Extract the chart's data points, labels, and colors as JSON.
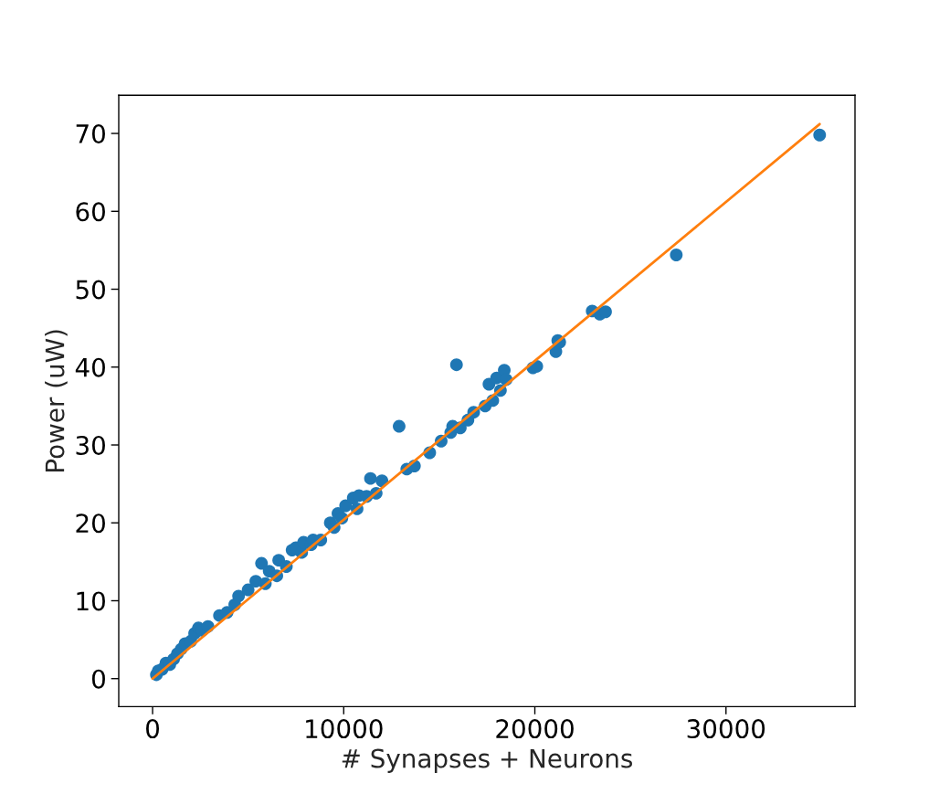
{
  "chart_data": {
    "type": "scatter",
    "xlabel": "# Synapses + Neurons",
    "ylabel": "Power (uW)",
    "xlim": [
      -1770,
      36750
    ],
    "ylim": [
      -3.6,
      74.9
    ],
    "xticks": [
      0,
      10000,
      20000,
      30000
    ],
    "yticks": [
      0,
      10,
      20,
      30,
      40,
      50,
      60,
      70
    ],
    "grid": false,
    "marker": "circle",
    "series": [
      {
        "color": "#1f77b4",
        "x": [
          200,
          300,
          500,
          700,
          900,
          1100,
          1300,
          1500,
          1700,
          2000,
          2200,
          2400,
          2600,
          2900,
          3500,
          3900,
          4300,
          4500,
          5000,
          5400,
          5700,
          5900,
          6100,
          6500,
          6600,
          7000,
          7300,
          7500,
          7800,
          7900,
          8300,
          8400,
          8800,
          9300,
          9500,
          9700,
          9900,
          10100,
          10500,
          10700,
          10800,
          11200,
          11400,
          11700,
          12000,
          12900,
          13300,
          13700,
          14500,
          15100,
          15600,
          15700,
          15900,
          16100,
          16500,
          16800,
          17400,
          17600,
          17800,
          18000,
          18200,
          18400,
          18500,
          19900,
          20100,
          21100,
          21200,
          21300,
          23000,
          23400,
          23700,
          27400,
          34900
        ],
        "values": [
          0.5,
          1.0,
          1.2,
          2.0,
          1.8,
          2.5,
          3.2,
          3.8,
          4.5,
          4.8,
          5.8,
          6.5,
          6.2,
          6.7,
          8.1,
          8.5,
          9.5,
          10.6,
          11.4,
          12.5,
          14.8,
          12.2,
          13.8,
          13.2,
          15.2,
          14.4,
          16.5,
          16.8,
          16.2,
          17.5,
          17.2,
          17.8,
          17.8,
          20.0,
          19.4,
          21.2,
          20.6,
          22.2,
          23.2,
          21.8,
          23.5,
          23.4,
          25.7,
          23.8,
          25.4,
          32.4,
          26.9,
          27.3,
          29.0,
          30.5,
          31.6,
          32.4,
          40.3,
          32.2,
          33.2,
          34.2,
          35.0,
          37.8,
          35.7,
          38.6,
          37.0,
          39.6,
          38.4,
          39.9,
          40.1,
          42.0,
          43.4,
          43.2,
          47.2,
          46.8,
          47.1,
          54.4,
          69.8
        ]
      },
      {
        "type": "line",
        "color": "#ff7f0e",
        "marker": "none",
        "line_style": "solid",
        "x": [
          0,
          34900
        ],
        "values": [
          0.0,
          71.2
        ]
      }
    ]
  }
}
